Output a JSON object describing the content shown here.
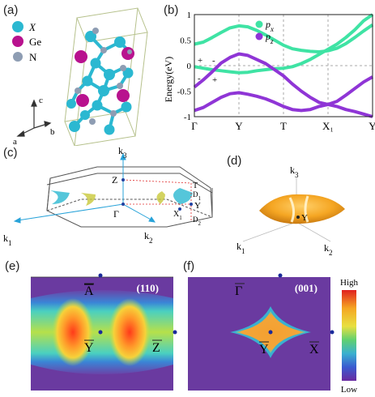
{
  "panels": {
    "a": "(a)",
    "b": "(b)",
    "c": "(c)",
    "d": "(d)",
    "e": "(e)",
    "f": "(f)"
  },
  "panel_a": {
    "legend": [
      {
        "label": "X",
        "color": "#2bb8d1"
      },
      {
        "label": "Ge",
        "color": "#b8128e"
      },
      {
        "label": "N",
        "color": "#8e9db3"
      }
    ],
    "axes": {
      "c": "c",
      "a": "a",
      "b": "b"
    }
  },
  "chart_data": {
    "type": "line",
    "ylabel": "Energy(eV)",
    "ylim": [
      -1,
      1
    ],
    "yticks": [
      "1",
      "0.5",
      "0",
      "-0.5",
      "-1"
    ],
    "kpath": [
      "Γ",
      "Y",
      "T",
      "X₁",
      "Y"
    ],
    "legend": [
      {
        "name": "p_x",
        "sub": "x",
        "color": "#3fe3a4"
      },
      {
        "name": "p_z",
        "sub": "z",
        "color": "#8f35d6"
      }
    ],
    "parity_labels": [
      "+",
      "-",
      "-",
      "+"
    ],
    "series": [
      {
        "name": "px-upper",
        "color": "#3fe3a4",
        "x": [
          0,
          0.05,
          0.1,
          0.15,
          0.2,
          0.25,
          0.3,
          0.35,
          0.4,
          0.45,
          0.5,
          0.55,
          0.6,
          0.65,
          0.7,
          0.75,
          0.8,
          0.85,
          0.9,
          0.95,
          1.0
        ],
        "y": [
          0.42,
          0.46,
          0.55,
          0.65,
          0.74,
          0.78,
          0.76,
          0.69,
          0.6,
          0.5,
          0.4,
          0.33,
          0.3,
          0.28,
          0.27,
          0.29,
          0.34,
          0.43,
          0.55,
          0.68,
          0.8
        ]
      },
      {
        "name": "px-lower",
        "color": "#3fe3a4",
        "x": [
          0,
          0.05,
          0.1,
          0.15,
          0.2,
          0.25,
          0.3,
          0.35,
          0.4,
          0.45,
          0.5,
          0.55,
          0.6,
          0.65,
          0.7,
          0.75,
          0.8,
          0.85,
          0.9,
          0.95,
          1.0
        ],
        "y": [
          -0.02,
          -0.05,
          -0.08,
          -0.1,
          -0.12,
          -0.14,
          -0.13,
          -0.1,
          -0.08,
          -0.06,
          -0.05,
          -0.02,
          0.04,
          0.12,
          0.22,
          0.32,
          0.42,
          0.55,
          0.7,
          0.88,
          1.0
        ]
      },
      {
        "name": "pz-upper",
        "color": "#8f35d6",
        "x": [
          0,
          0.05,
          0.1,
          0.15,
          0.2,
          0.25,
          0.3,
          0.35,
          0.4,
          0.45,
          0.5,
          0.55,
          0.6,
          0.65,
          0.7,
          0.75,
          0.8,
          0.85,
          0.9,
          0.95,
          1.0
        ],
        "y": [
          -0.42,
          -0.28,
          -0.12,
          0.05,
          0.16,
          0.23,
          0.2,
          0.12,
          0.04,
          -0.08,
          -0.2,
          -0.36,
          -0.5,
          -0.62,
          -0.72,
          -0.76,
          -0.7,
          -0.58,
          -0.45,
          -0.32,
          -0.22
        ]
      },
      {
        "name": "pz-lower",
        "color": "#8f35d6",
        "x": [
          0,
          0.05,
          0.1,
          0.15,
          0.2,
          0.25,
          0.3,
          0.35,
          0.4,
          0.45,
          0.5,
          0.55,
          0.6,
          0.65,
          0.7,
          0.75,
          0.8,
          0.85,
          0.9,
          0.95,
          1.0
        ],
        "y": [
          -0.88,
          -0.82,
          -0.72,
          -0.62,
          -0.55,
          -0.53,
          -0.56,
          -0.6,
          -0.65,
          -0.72,
          -0.8,
          -0.86,
          -0.88,
          -0.86,
          -0.8,
          -0.76,
          -0.8,
          -0.86,
          -0.9,
          -0.95,
          -1.0
        ]
      }
    ]
  },
  "panel_c": {
    "labels": {
      "k1": "k",
      "k1_sub": "1",
      "k2": "k",
      "k2_sub": "2",
      "k3": "k",
      "k3_sub": "3",
      "Z": "Z",
      "Gamma": "Γ",
      "T": "T",
      "Y": "Y",
      "D1": "D",
      "D1_sub": "1",
      "D2": "D",
      "D2_sub": "2",
      "X1": "X",
      "X1_sub": "1"
    }
  },
  "panel_d": {
    "labels": {
      "k1": "k",
      "k1_sub": "1",
      "k2": "k",
      "k2_sub": "2",
      "k3": "k",
      "k3_sub": "3",
      "Y": "Y"
    }
  },
  "panel_e": {
    "surface": "(110)",
    "top_label": "A",
    "center_label": "Y",
    "right_label": "Z"
  },
  "panel_f": {
    "surface": "(001)",
    "top_label": "Γ",
    "center_label": "Y",
    "right_label": "X",
    "colorbar": {
      "high": "High",
      "low": "Low"
    }
  }
}
